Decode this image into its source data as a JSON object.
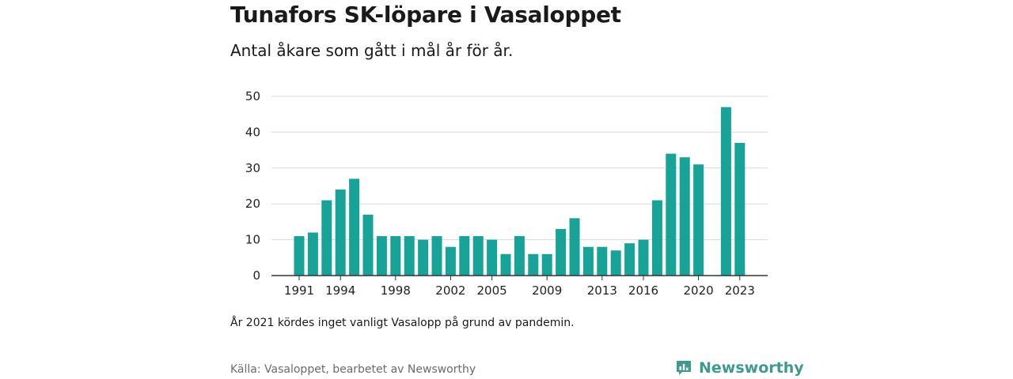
{
  "title": "Tunafors SK-löpare i Vasaloppet",
  "subtitle": "Antal åkare som gått i mål år för år.",
  "note": "År 2021 kördes inget vanligt Vasalopp på grund av pandemin.",
  "source": "Källa: Vasaloppet, bearbetet av Newsworthy",
  "logo": {
    "text": "Newsworthy",
    "icon": "newsworthy-logo-icon",
    "color": "#3d9a8e"
  },
  "chart_data": {
    "type": "bar",
    "title": "Tunafors SK-löpare i Vasaloppet",
    "subtitle": "Antal åkare som gått i mål år för år.",
    "xlabel": "",
    "ylabel": "",
    "ylim": [
      0,
      50
    ],
    "yticks": [
      0,
      10,
      20,
      30,
      40,
      50
    ],
    "xticks": [
      1991,
      1994,
      1998,
      2002,
      2005,
      2009,
      2013,
      2016,
      2020,
      2023
    ],
    "grid": true,
    "bar_color": "#17a398",
    "categories": [
      1991,
      1992,
      1993,
      1994,
      1995,
      1996,
      1997,
      1998,
      1999,
      2000,
      2001,
      2002,
      2003,
      2004,
      2005,
      2006,
      2007,
      2008,
      2009,
      2010,
      2011,
      2012,
      2013,
      2014,
      2015,
      2016,
      2017,
      2018,
      2019,
      2020,
      2021,
      2022,
      2023
    ],
    "values": [
      11,
      12,
      21,
      24,
      27,
      17,
      11,
      11,
      11,
      10,
      11,
      8,
      11,
      11,
      10,
      6,
      11,
      6,
      6,
      13,
      16,
      8,
      8,
      7,
      9,
      10,
      21,
      34,
      33,
      31,
      null,
      47,
      37
    ]
  }
}
